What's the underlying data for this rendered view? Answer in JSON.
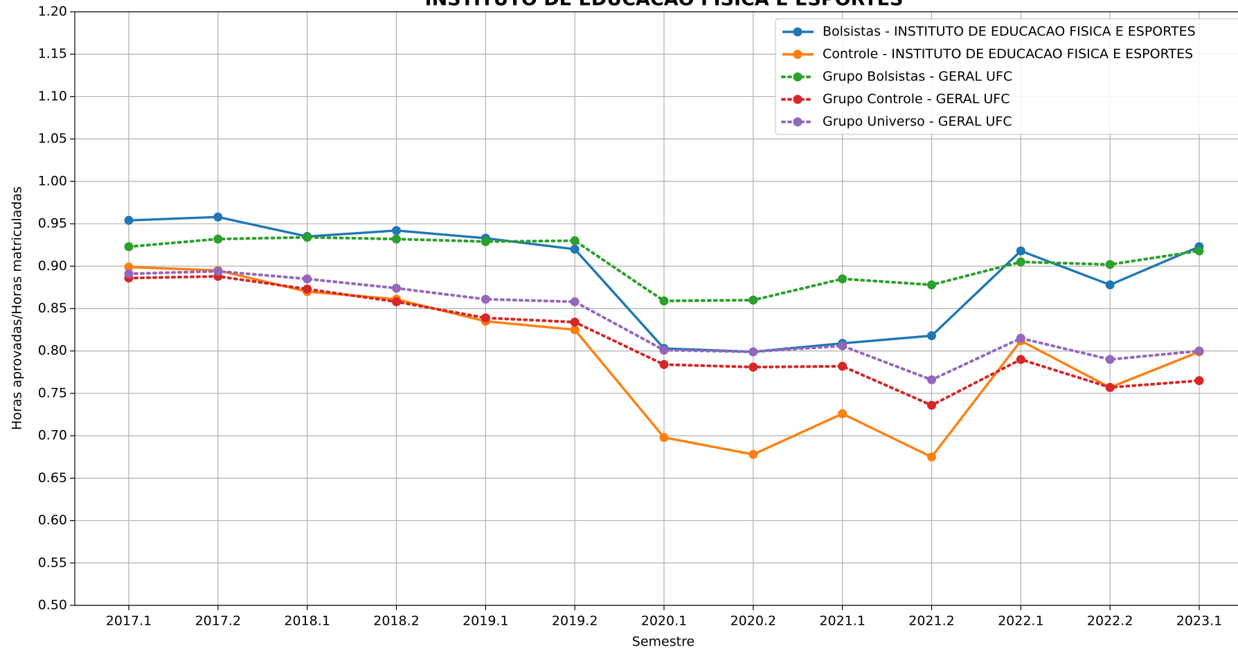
{
  "chart_data": {
    "type": "line",
    "title": "INSTITUTO DE EDUCACAO FISICA E ESPORTES",
    "x_label": "Semestre",
    "y_label": "Horas aprovadas/Horas matriculadas",
    "categories": [
      "2017.1",
      "2017.2",
      "2018.1",
      "2018.2",
      "2019.1",
      "2019.2",
      "2020.1",
      "2020.2",
      "2021.1",
      "2021.2",
      "2022.1",
      "2022.2",
      "2023.1"
    ],
    "series": [
      {
        "name": "Bolsistas - INSTITUTO DE EDUCACAO FISICA E ESPORTES",
        "color": "#1f77b4",
        "linestyle": "solid",
        "values": [
          0.954,
          0.958,
          0.935,
          0.942,
          0.933,
          0.92,
          0.803,
          0.799,
          0.809,
          0.818,
          0.918,
          0.878,
          0.923
        ]
      },
      {
        "name": "Controle - INSTITUTO DE EDUCACAO FISICA E ESPORTES",
        "color": "#ff7f0e",
        "linestyle": "solid",
        "values": [
          0.899,
          0.895,
          0.87,
          0.861,
          0.835,
          0.825,
          0.698,
          0.678,
          0.726,
          0.675,
          0.812,
          0.757,
          0.799
        ]
      },
      {
        "name": "Grupo Bolsistas - GERAL UFC",
        "color": "#2ca02c",
        "linestyle": "dotted",
        "values": [
          0.923,
          0.932,
          0.934,
          0.932,
          0.929,
          0.93,
          0.859,
          0.86,
          0.885,
          0.878,
          0.905,
          0.902,
          0.918
        ]
      },
      {
        "name": "Grupo Controle - GERAL UFC",
        "color": "#d62728",
        "linestyle": "dotted",
        "values": [
          0.886,
          0.888,
          0.873,
          0.858,
          0.839,
          0.834,
          0.784,
          0.781,
          0.782,
          0.736,
          0.79,
          0.757,
          0.765
        ]
      },
      {
        "name": "Grupo Universo - GERAL UFC",
        "color": "#9467bd",
        "linestyle": "dotted",
        "values": [
          0.891,
          0.894,
          0.885,
          0.874,
          0.861,
          0.858,
          0.801,
          0.799,
          0.806,
          0.766,
          0.815,
          0.79,
          0.8
        ]
      }
    ],
    "ylim": [
      0.5,
      1.2
    ],
    "yticks": [
      {
        "value": 0.5,
        "label": "0.50"
      },
      {
        "value": 0.55,
        "label": "0.55"
      },
      {
        "value": 0.6,
        "label": "0.60"
      },
      {
        "value": 0.65,
        "label": "0.65"
      },
      {
        "value": 0.7,
        "label": "0.70"
      },
      {
        "value": 0.75,
        "label": "0.75"
      },
      {
        "value": 0.8,
        "label": "0.80"
      },
      {
        "value": 0.85,
        "label": "0.85"
      },
      {
        "value": 0.9,
        "label": "0.90"
      },
      {
        "value": 0.95,
        "label": "0.95"
      },
      {
        "value": 1.0,
        "label": "1.00"
      },
      {
        "value": 1.05,
        "label": "1.05"
      },
      {
        "value": 1.1,
        "label": "1.10"
      },
      {
        "value": 1.15,
        "label": "1.15"
      },
      {
        "value": 1.2,
        "label": "1.20"
      }
    ],
    "grid": true,
    "legend": "upper right"
  }
}
